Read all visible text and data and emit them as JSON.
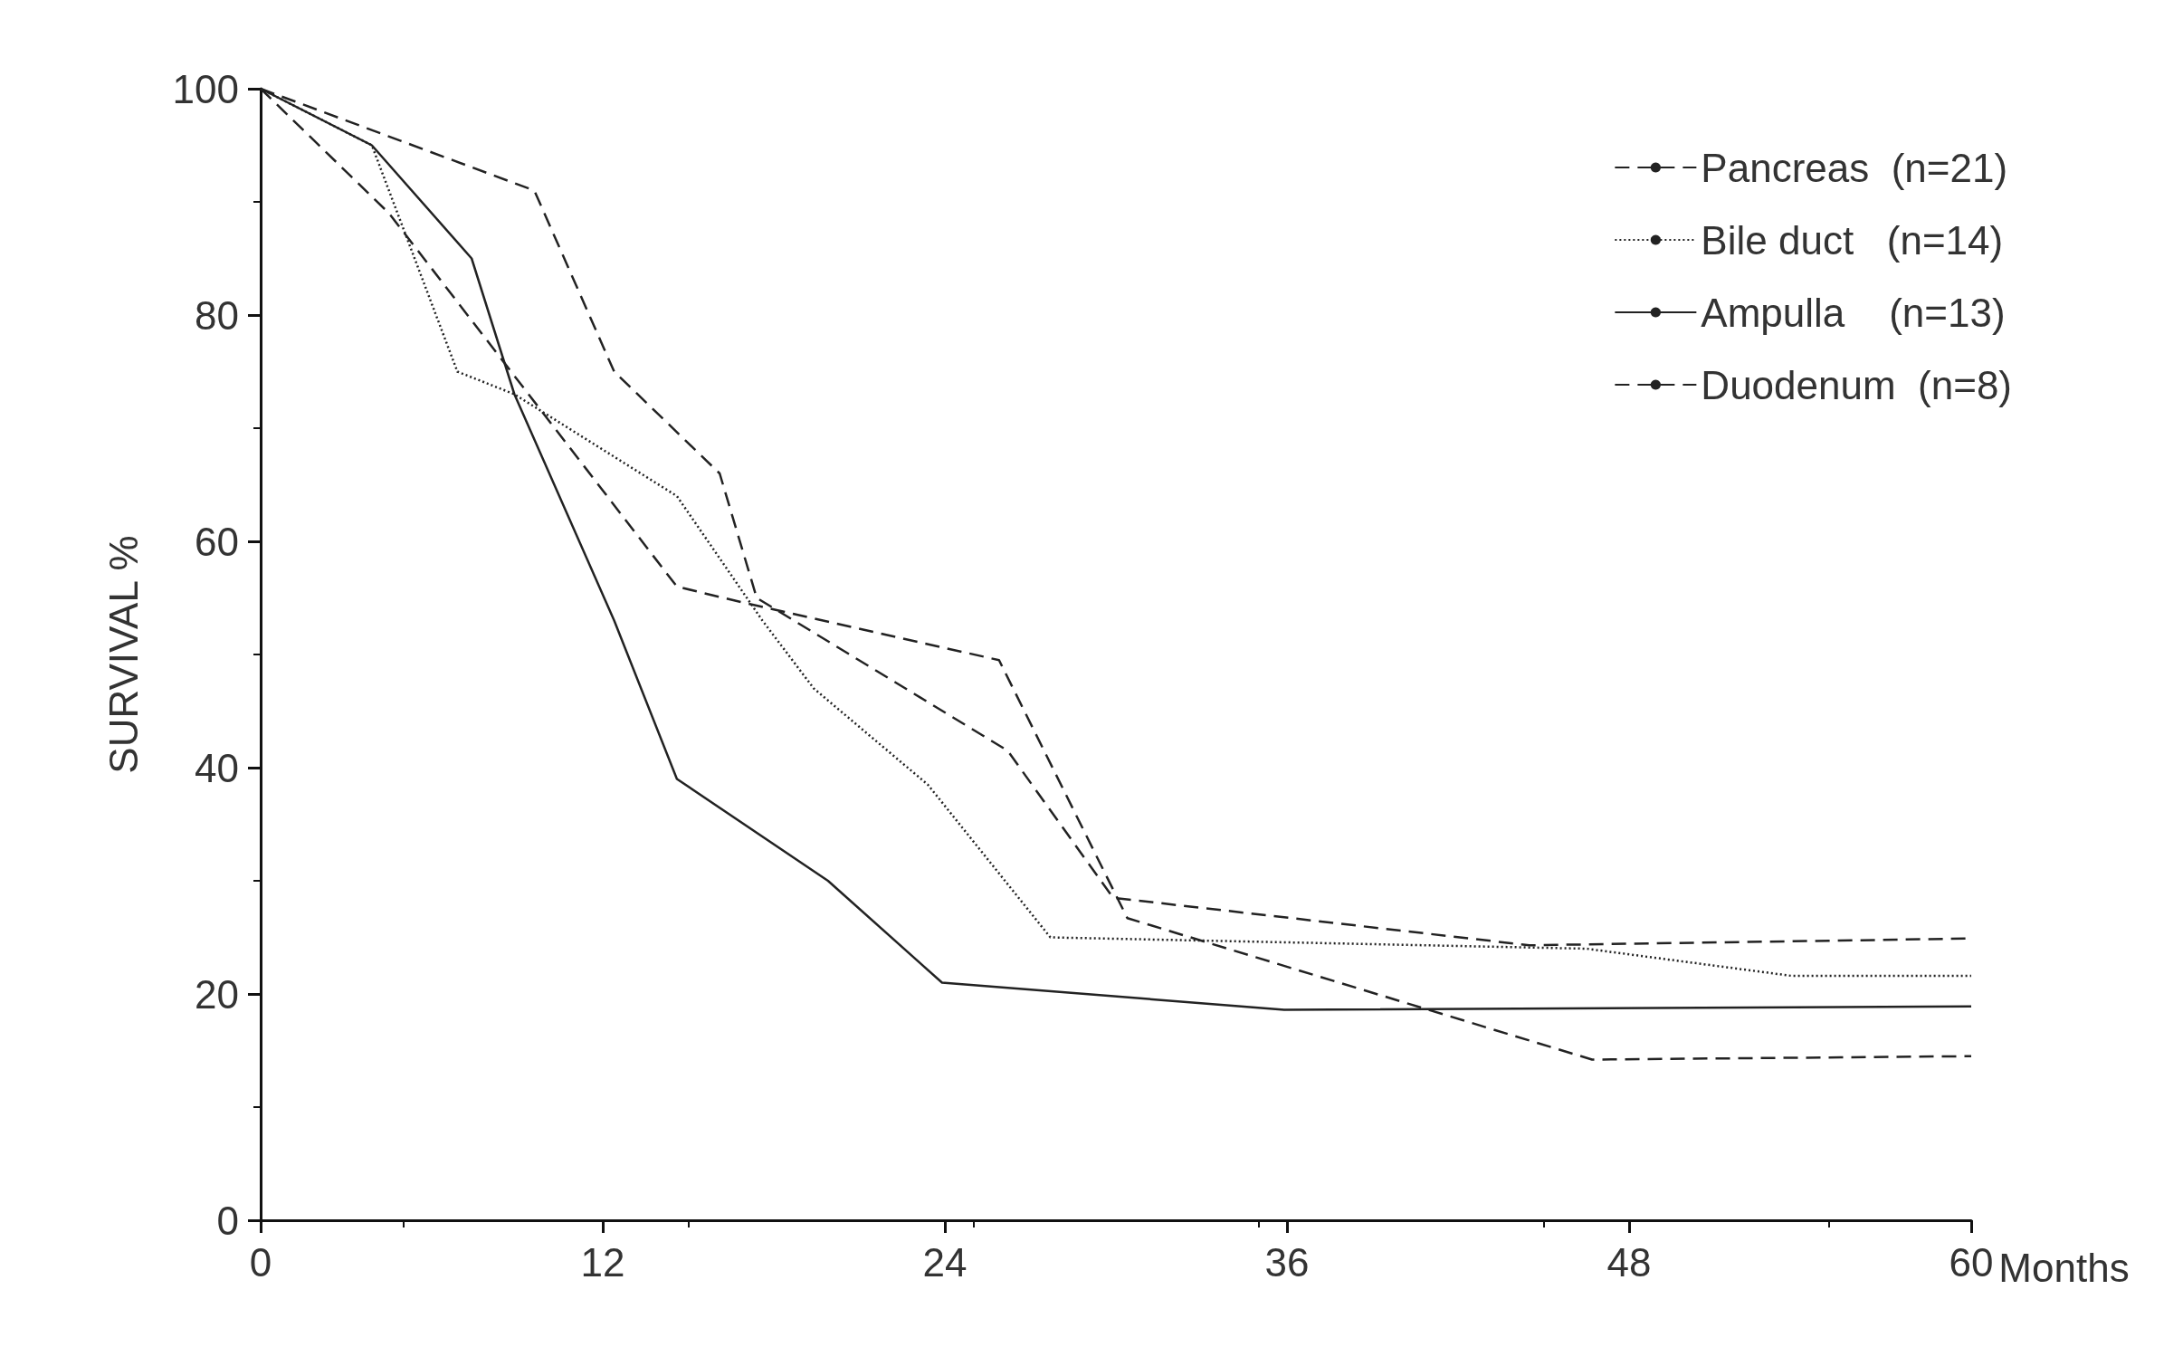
{
  "chart_data": {
    "type": "line",
    "xlabel": "Months",
    "ylabel": "SURVIVAL %",
    "xlim": [
      0,
      60
    ],
    "xticks": [
      0,
      12,
      24,
      36,
      48,
      60
    ],
    "ylim": [
      0,
      100
    ],
    "yticks": [
      0,
      20,
      40,
      60,
      80,
      100
    ],
    "grid": false,
    "legend": "top right",
    "marker": "none",
    "series": [
      {
        "name": "Pancreas  (n=21)",
        "color": "#222222",
        "line_style": "dashed",
        "x": [
          0,
          4.5,
          14.6,
          16.9,
          25.9,
          30.4,
          46.7,
          60
        ],
        "values": [
          100,
          89,
          56,
          54.6,
          49.5,
          26.7,
          14.2,
          14.5
        ]
      },
      {
        "name": "Bile duct   (n=14)",
        "color": "#222222",
        "line_style": "dotted",
        "x": [
          0,
          3.9,
          6.9,
          8.9,
          14.6,
          17.6,
          19.4,
          23.4,
          27.7,
          46.5,
          53.7,
          60
        ],
        "values": [
          100,
          95,
          75,
          73,
          64,
          53,
          47,
          38.5,
          25,
          24,
          21.6,
          21.6
        ]
      },
      {
        "name": "Ampulla    (n=13)",
        "color": "#222222",
        "line_style": "solid",
        "x": [
          0,
          3.9,
          7.4,
          8.9,
          12.4,
          14.6,
          19.9,
          23.9,
          35.9,
          60
        ],
        "values": [
          100,
          95,
          85,
          73,
          53,
          39,
          30,
          21,
          18.6,
          18.9
        ]
      },
      {
        "name": "Duodenum  (n=8)",
        "color": "#222222",
        "line_style": "dashed",
        "x": [
          0,
          9.6,
          12.4,
          16.1,
          17.4,
          26.2,
          29.9,
          44.5,
          60
        ],
        "values": [
          100,
          91,
          75,
          66,
          55,
          41.5,
          28.5,
          24.3,
          24.9
        ]
      }
    ]
  }
}
